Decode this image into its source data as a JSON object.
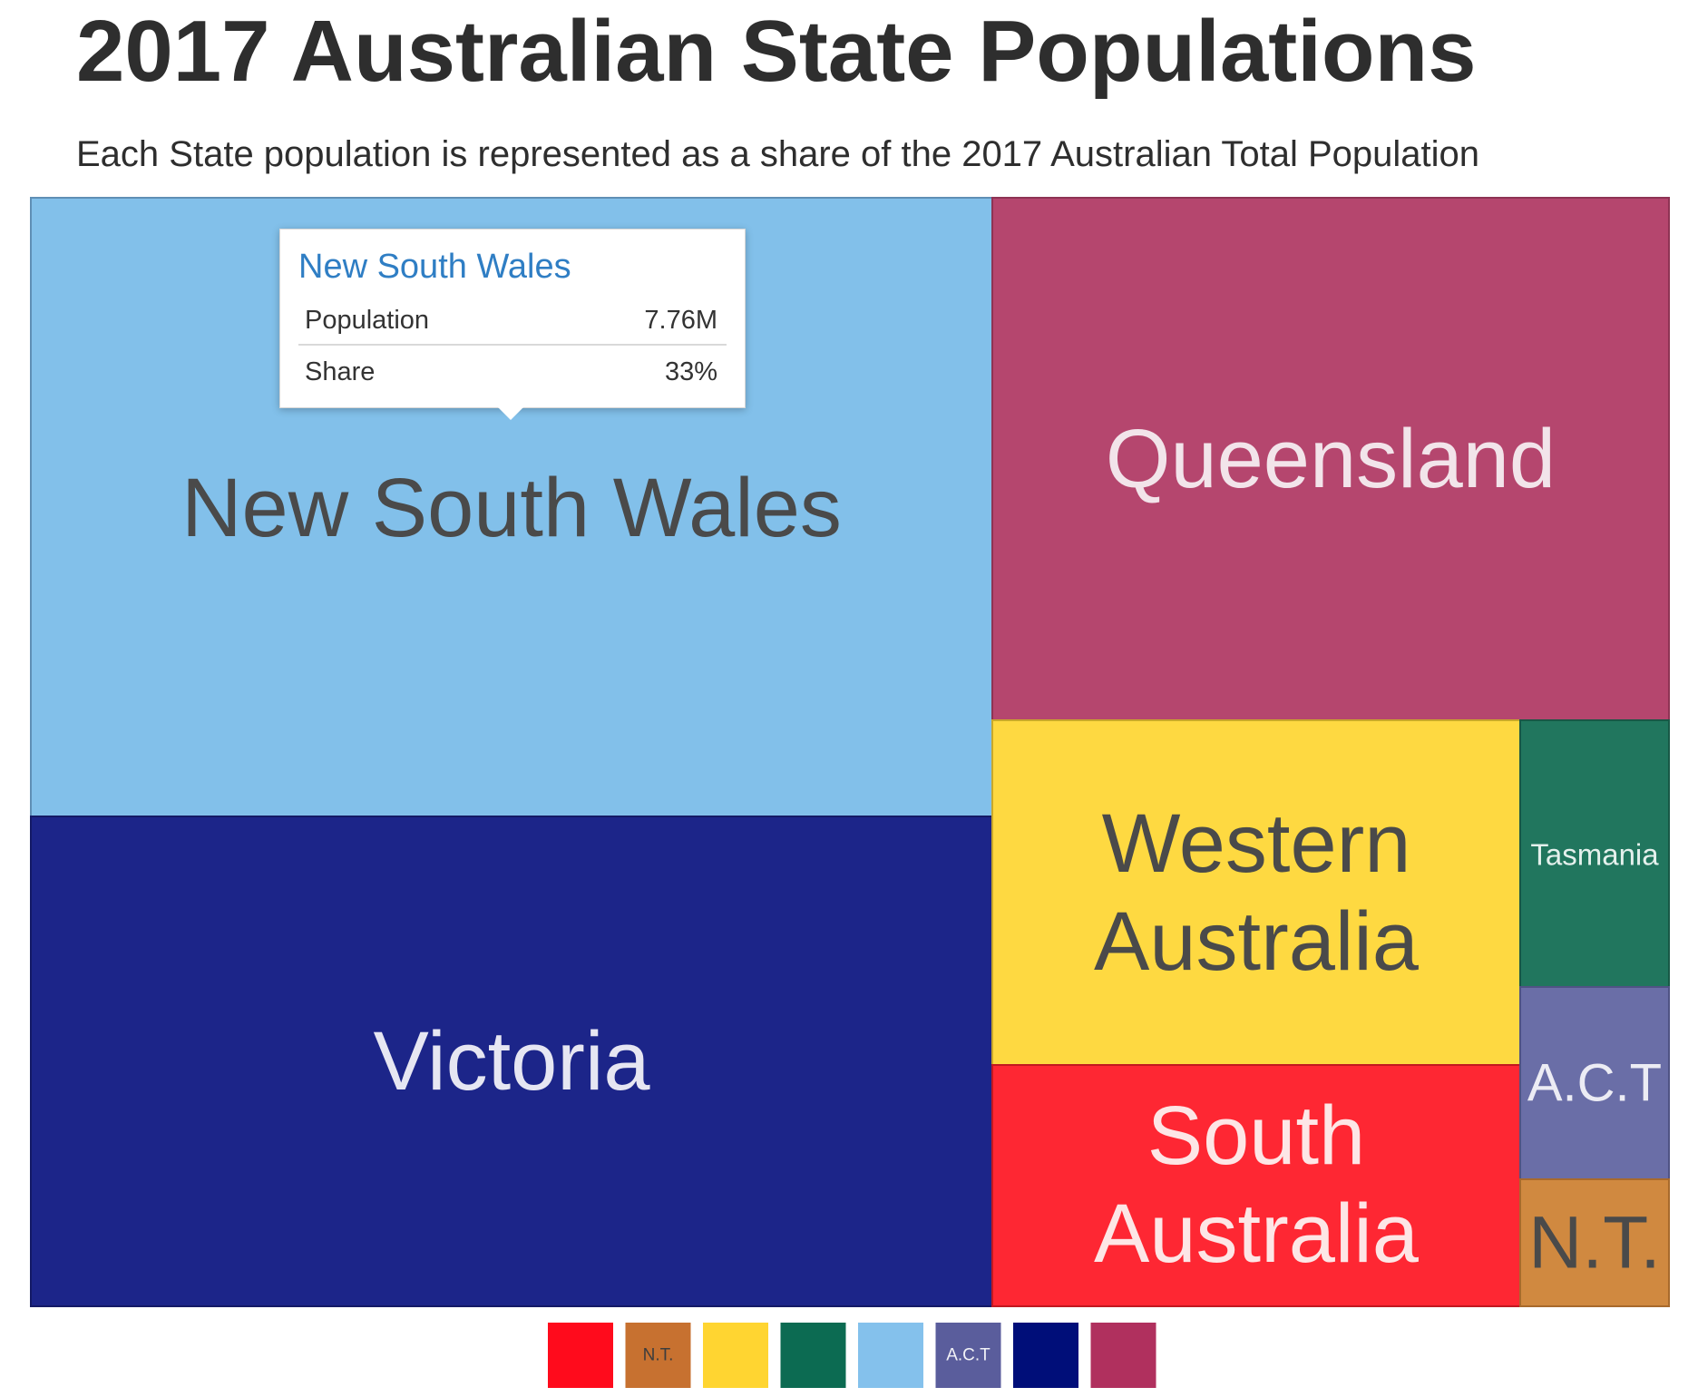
{
  "chart_data": {
    "type": "treemap",
    "title": "2017 Australian State Populations",
    "subtitle": "Each State population is represented as a share of the 2017 Australian Total Population",
    "cells": [
      {
        "name": "New South Wales",
        "label": "New South Wales",
        "share": 0.33,
        "color": "#82c0ea",
        "text_color": "#4a4a4a",
        "border": "#5f8fb5"
      },
      {
        "name": "Victoria",
        "label": "Victoria",
        "share": 0.26,
        "color": "#1c2589",
        "text_color": "#e6e6f2",
        "border": "#141a66"
      },
      {
        "name": "Queensland",
        "label": "Queensland",
        "share": 0.2,
        "color": "#b5466e",
        "text_color": "#f2e4ea",
        "border": "#8e3354"
      },
      {
        "name": "Western Australia",
        "label": "Western Australia",
        "share": 0.105,
        "color": "#fed941",
        "text_color": "#4a4a4a",
        "border": "#c9a92a"
      },
      {
        "name": "South Australia",
        "label": "South Australia",
        "share": 0.07,
        "color": "#fe2733",
        "text_color": "#fde6e6",
        "border": "#c21820"
      },
      {
        "name": "Tasmania",
        "label": "Tasmania",
        "share": 0.02,
        "color": "#21765e",
        "text_color": "#e4f0ec",
        "border": "#185846"
      },
      {
        "name": "A.C.T",
        "label": "A.C.T",
        "share": 0.017,
        "color": "#6a6ea7",
        "text_color": "#ececf4",
        "border": "#4f5384"
      },
      {
        "name": "N.T.",
        "label": "N.T.",
        "share": 0.01,
        "color": "#d08940",
        "text_color": "#4a4a4a",
        "border": "#a86a2c"
      }
    ],
    "legend": [
      {
        "label": "",
        "color": "#ff0b1c"
      },
      {
        "label": "N.T.",
        "color": "#c77130",
        "text_color": "#3d3d3d"
      },
      {
        "label": "",
        "color": "#ffd531"
      },
      {
        "label": "",
        "color": "#0c6b52"
      },
      {
        "label": "",
        "color": "#84c1ec"
      },
      {
        "label": "A.C.T",
        "color": "#5a5d9c",
        "text_color": "#f2f2f7"
      },
      {
        "label": "",
        "color": "#000e79"
      },
      {
        "label": "",
        "color": "#b0305e"
      }
    ]
  },
  "tooltip": {
    "title": "New South Wales",
    "rows": [
      {
        "key": "Population",
        "value": "7.76M"
      },
      {
        "key": "Share",
        "value": "33%"
      }
    ]
  }
}
